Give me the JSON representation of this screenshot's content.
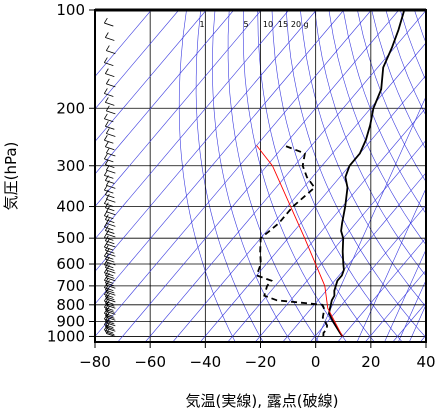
{
  "chart_data": {
    "type": "line",
    "title": "",
    "xlabel": "気温(実線), 露点(破線)",
    "ylabel": "気圧(hPa)",
    "xlim": [
      -80,
      40
    ],
    "ylim": [
      1040,
      100
    ],
    "y_scale": "log",
    "x_ticks": [
      "−80",
      "−60",
      "−40",
      "−20",
      "0",
      "20",
      "40"
    ],
    "y_ticks": [
      "100",
      "200",
      "300",
      "400",
      "500",
      "600",
      "700",
      "800",
      "900",
      "1000"
    ],
    "mixing_ratio_labels": [
      "1",
      "5",
      "10",
      "15",
      "20",
      "g"
    ],
    "grid": true,
    "series": [
      {
        "style": "solid",
        "color": "#000000",
        "points": [
          {
            "p": 1000,
            "t": 10
          },
          {
            "p": 975,
            "t": 8
          },
          {
            "p": 950,
            "t": 6
          },
          {
            "p": 925,
            "t": 4
          },
          {
            "p": 900,
            "t": 2
          },
          {
            "p": 875,
            "t": 0
          },
          {
            "p": 850,
            "t": -2
          },
          {
            "p": 825,
            "t": -3
          },
          {
            "p": 800,
            "t": -4
          },
          {
            "p": 775,
            "t": -5
          },
          {
            "p": 750,
            "t": -5.5
          },
          {
            "p": 725,
            "t": -7
          },
          {
            "p": 700,
            "t": -8
          },
          {
            "p": 675,
            "t": -9
          },
          {
            "p": 650,
            "t": -9
          },
          {
            "p": 625,
            "t": -10
          },
          {
            "p": 600,
            "t": -12
          },
          {
            "p": 550,
            "t": -16
          },
          {
            "p": 500,
            "t": -20
          },
          {
            "p": 475,
            "t": -23
          },
          {
            "p": 450,
            "t": -25
          },
          {
            "p": 400,
            "t": -29
          },
          {
            "p": 350,
            "t": -34
          },
          {
            "p": 325,
            "t": -38
          },
          {
            "p": 300,
            "t": -40
          },
          {
            "p": 275,
            "t": -40
          },
          {
            "p": 250,
            "t": -42
          },
          {
            "p": 225,
            "t": -45
          },
          {
            "p": 200,
            "t": -49
          },
          {
            "p": 175,
            "t": -52
          },
          {
            "p": 150,
            "t": -58
          },
          {
            "p": 130,
            "t": -61
          },
          {
            "p": 115,
            "t": -64
          },
          {
            "p": 100,
            "t": -68
          }
        ]
      },
      {
        "style": "dashed",
        "color": "#000000",
        "points": [
          {
            "p": 1000,
            "t": 3
          },
          {
            "p": 975,
            "t": 2
          },
          {
            "p": 950,
            "t": 2
          },
          {
            "p": 925,
            "t": 1
          },
          {
            "p": 900,
            "t": -1
          },
          {
            "p": 875,
            "t": -3
          },
          {
            "p": 850,
            "t": -4
          },
          {
            "p": 825,
            "t": -5
          },
          {
            "p": 800,
            "t": -7
          },
          {
            "p": 775,
            "t": -25
          },
          {
            "p": 750,
            "t": -31
          },
          {
            "p": 700,
            "t": -33
          },
          {
            "p": 675,
            "t": -33
          },
          {
            "p": 650,
            "t": -40
          },
          {
            "p": 600,
            "t": -42
          },
          {
            "p": 550,
            "t": -46
          },
          {
            "p": 500,
            "t": -50
          },
          {
            "p": 475,
            "t": -49
          },
          {
            "p": 450,
            "t": -48
          },
          {
            "p": 400,
            "t": -48
          },
          {
            "p": 350,
            "t": -46
          },
          {
            "p": 325,
            "t": -52
          },
          {
            "p": 300,
            "t": -57
          },
          {
            "p": 275,
            "t": -60
          },
          {
            "p": 260,
            "t": -70
          }
        ]
      },
      {
        "style": "solid",
        "color": "#ff0000",
        "points": [
          {
            "p": 1000,
            "t": 10
          },
          {
            "p": 820,
            "t": -4
          },
          {
            "p": 700,
            "t": -12
          },
          {
            "p": 500,
            "t": -34
          },
          {
            "p": 300,
            "t": -68
          },
          {
            "p": 260,
            "t": -80
          }
        ]
      }
    ]
  }
}
